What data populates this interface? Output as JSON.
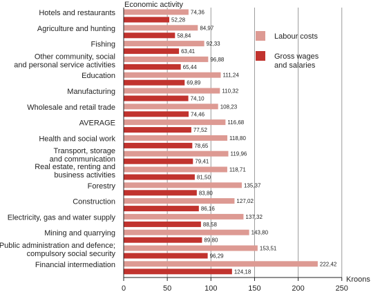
{
  "chart_data": {
    "type": "bar",
    "orientation": "horizontal",
    "title": "",
    "ylabel": "Economic activity",
    "xlabel": "Kroons",
    "xlim": [
      0,
      250
    ],
    "xticks": [
      0,
      50,
      100,
      150,
      200,
      250
    ],
    "grid": "vertical lines",
    "legend": "top-right",
    "categories": [
      [
        "Hotels and restaurants"
      ],
      [
        "Agriculture and hunting"
      ],
      [
        "Fishing"
      ],
      [
        "Other community, social",
        "and personal service activities"
      ],
      [
        "Education"
      ],
      [
        "Manufacturing"
      ],
      [
        "Wholesale and retail trade"
      ],
      [
        "AVERAGE"
      ],
      [
        "Health and social work"
      ],
      [
        "Transport, storage",
        "and communication"
      ],
      [
        "Real estate, renting and",
        "business activities"
      ],
      [
        "Forestry"
      ],
      [
        "Construction"
      ],
      [
        "Electricity, gas and water supply"
      ],
      [
        "Mining and quarrying"
      ],
      [
        "Public administration and defence;",
        "compulsory social security"
      ],
      [
        "Financial intermediation"
      ]
    ],
    "series": [
      {
        "name": [
          "Labour costs"
        ],
        "color": "#dd9a93",
        "values": [
          74.36,
          84.97,
          92.33,
          96.88,
          111.24,
          110.32,
          108.23,
          116.68,
          118.8,
          119.96,
          118.71,
          135.37,
          127.02,
          137.32,
          143.8,
          153.51,
          222.42
        ],
        "labels": [
          "74,36",
          "84,97",
          "92,33",
          "96,88",
          "111,24",
          "110,32",
          "108,23",
          "116,68",
          "118,80",
          "119,96",
          "118,71",
          "135,37",
          "127,02",
          "137,32",
          "143,80",
          "153,51",
          "222,42"
        ]
      },
      {
        "name": [
          "Gross wages",
          "and salaries"
        ],
        "color": "#c1332e",
        "values": [
          52.28,
          58.84,
          63.41,
          65.44,
          69.89,
          74.1,
          74.46,
          77.52,
          78.65,
          79.41,
          81.5,
          83.8,
          86.16,
          88.58,
          89.8,
          96.29,
          124.18
        ],
        "labels": [
          "52,28",
          "58,84",
          "63,41",
          "65,44",
          "69,89",
          "74,10",
          "74,46",
          "77,52",
          "78,65",
          "79,41",
          "81,50",
          "83,80",
          "86,16",
          "88,58",
          "89,80",
          "96,29",
          "124,18"
        ]
      }
    ]
  }
}
